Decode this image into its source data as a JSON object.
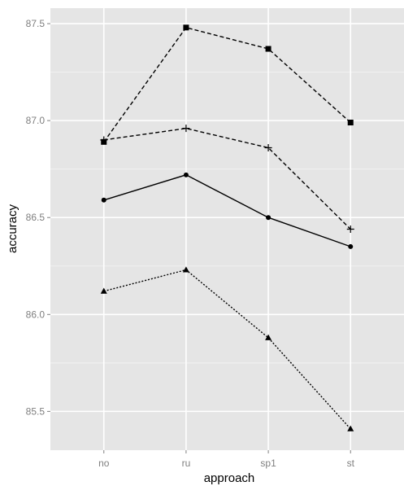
{
  "chart_data": {
    "type": "line",
    "title": "",
    "xlabel": "approach",
    "ylabel": "accuracy",
    "categories": [
      "no",
      "ru",
      "sp1",
      "st"
    ],
    "ylim": [
      85.3,
      87.58
    ],
    "y_ticks": [
      85.5,
      86.0,
      86.5,
      87.0,
      87.5
    ],
    "y_tick_labels": [
      "85.5",
      "86.0",
      "86.5",
      "87.0",
      "87.5"
    ],
    "grid": true,
    "legend": "none",
    "colors": {
      "panel": "#e5e5e5",
      "grid": "#ffffff",
      "ink": "#000000",
      "tick_text": "#7f7f7f"
    },
    "series": [
      {
        "values": [
          86.89,
          87.48,
          87.37,
          86.99
        ],
        "marker": "square",
        "line": "dashed"
      },
      {
        "values": [
          86.9,
          86.96,
          86.86,
          86.44
        ],
        "marker": "plus",
        "line": "dashed"
      },
      {
        "values": [
          86.59,
          86.72,
          86.5,
          86.35
        ],
        "marker": "circle",
        "line": "solid"
      },
      {
        "values": [
          86.12,
          86.23,
          85.88,
          85.41
        ],
        "marker": "triangle",
        "line": "dotted"
      }
    ]
  }
}
